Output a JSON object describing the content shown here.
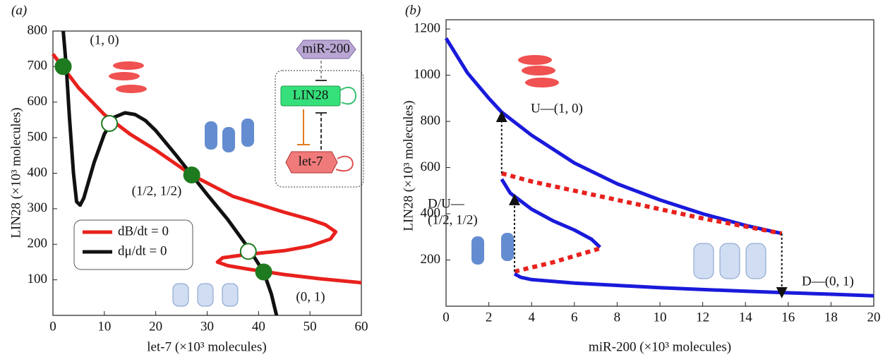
{
  "chart_data": [
    {
      "type": "line",
      "panel_label": "(a)",
      "xlabel": "let-7 (×10³ molecules)",
      "ylabel": "LIN28 (×10³ molecules)",
      "xlim": [
        0,
        60
      ],
      "xticks": [
        0,
        10,
        20,
        30,
        40,
        50,
        60
      ],
      "ylim": [
        0,
        800
      ],
      "yticks": [
        100,
        200,
        300,
        400,
        500,
        600,
        700,
        800
      ],
      "series": [
        {
          "name": "dB/dt = 0",
          "color": "#e8211d",
          "x": [
            0,
            5,
            10,
            15,
            20,
            27,
            35,
            45,
            50,
            53,
            55,
            54,
            50,
            45,
            38,
            33,
            32,
            34,
            38,
            45,
            52,
            60
          ],
          "values": [
            735,
            640,
            565,
            510,
            465,
            395,
            335,
            290,
            270,
            255,
            235,
            215,
            195,
            182,
            172,
            162,
            150,
            140,
            130,
            115,
            103,
            92
          ]
        },
        {
          "name": "dμ/dt = 0",
          "color": "#111111",
          "x": [
            2,
            2.6,
            3.2,
            4,
            4.6,
            5.3,
            6,
            7,
            8,
            10,
            12,
            14,
            16,
            18,
            20,
            24,
            27,
            30,
            34,
            38,
            41,
            42.5,
            43.5
          ],
          "values": [
            800,
            700,
            560,
            400,
            320,
            310,
            330,
            380,
            430,
            510,
            558,
            570,
            565,
            548,
            520,
            450,
            395,
            340,
            270,
            190,
            122,
            60,
            0
          ]
        }
      ],
      "stable_points": {
        "color": "#1e7a1e",
        "x": [
          2,
          27,
          41
        ],
        "y": [
          700,
          395,
          122
        ]
      },
      "unstable_points": {
        "color": "#1e7a1e",
        "x": [
          11,
          38
        ],
        "y": [
          540,
          180
        ]
      },
      "annotations": [
        "(1, 0)",
        "(1/2, 1/2)",
        "(0, 1)"
      ],
      "inset": {
        "nodes": [
          "miR-200",
          "LIN28",
          "let-7"
        ]
      }
    },
    {
      "type": "line",
      "panel_label": "(b)",
      "xlabel": "miR-200 (×10³ molecules)",
      "ylabel": "LIN28 (×10³ molecules)",
      "xlim": [
        0,
        20
      ],
      "xticks": [
        0,
        2,
        4,
        6,
        8,
        10,
        12,
        14,
        16,
        18,
        20
      ],
      "ylim": [
        0,
        1240
      ],
      "yticks": [
        200,
        400,
        600,
        800,
        1000,
        1200
      ],
      "series": [
        {
          "color": "#1a1adb",
          "style": "solid",
          "x": [
            0,
            1,
            2,
            2.6,
            4,
            6,
            8,
            10,
            12,
            14,
            15.7
          ],
          "values": [
            1160,
            1010,
            900,
            840,
            740,
            620,
            530,
            460,
            400,
            350,
            315
          ]
        },
        {
          "color": "#e8211d",
          "style": "dotted",
          "x": [
            2.6,
            4,
            6,
            8,
            10,
            12,
            14,
            15.7
          ],
          "values": [
            575,
            540,
            500,
            460,
            420,
            380,
            345,
            315
          ]
        },
        {
          "color": "#1a1adb",
          "style": "solid",
          "x": [
            2.6,
            3,
            4,
            5,
            6,
            6.8,
            7.2
          ],
          "values": [
            550,
            490,
            420,
            370,
            330,
            290,
            255
          ]
        },
        {
          "color": "#e8211d",
          "style": "dotted",
          "x": [
            3.2,
            5,
            7.2
          ],
          "values": [
            150,
            190,
            250
          ]
        },
        {
          "color": "#1a1adb",
          "style": "solid",
          "x": [
            3.2,
            3.5,
            4,
            6,
            8,
            10,
            12,
            14,
            16,
            18,
            20
          ],
          "values": [
            140,
            125,
            115,
            100,
            90,
            80,
            72,
            65,
            58,
            52,
            45
          ]
        }
      ],
      "transitions": [
        {
          "x": 2.6,
          "from": 575,
          "to": 840
        },
        {
          "x": 3.2,
          "from": 150,
          "to": 480
        },
        {
          "x": 15.7,
          "from": 315,
          "to": 40
        }
      ],
      "annotations": [
        "U—(1, 0)",
        "D/U—",
        "(1/2, 1/2)",
        "D—(0, 1)"
      ]
    }
  ]
}
